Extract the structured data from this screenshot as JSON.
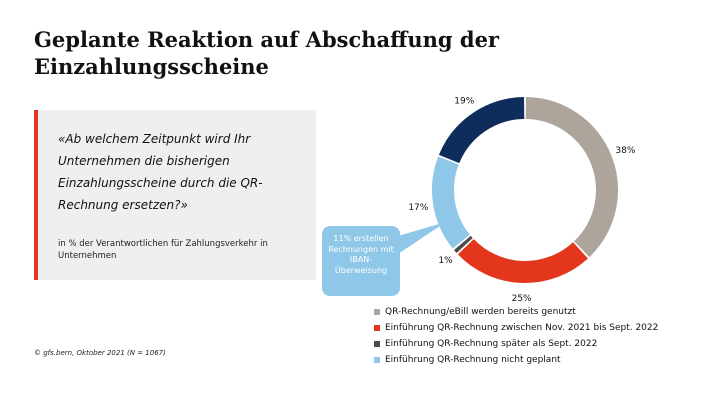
{
  "title": "Geplante Reaktion auf Abschaffung der Einzahlungsscheine",
  "question": "«Ab welchem Zeitpunkt wird Ihr Unternehmen die bisherigen Einzahlungsscheine durch die QR-Rechnung ersetzen?»",
  "subtext": "in % der Verantwortlichen für Zahlungsverkehr in Unternehmen",
  "source": "© gfs.bern, Oktober 2021 (N = 1067)",
  "callout": "11% erstellen Rechnungen mit IBAN-Überweisung",
  "colors": {
    "accent": "#e2371d",
    "panel": "#efefef"
  },
  "chart_data": {
    "type": "pie",
    "donut": true,
    "categories": [
      "QR-Rechnung/eBill werden bereits genutzt",
      "Einführung QR-Rechnung zwischen Nov. 2021 bis Sept. 2022",
      "Einführung QR-Rechnung später als Sept. 2022",
      "Einführung QR-Rechnung nicht geplant",
      ""
    ],
    "values": [
      38,
      25,
      1,
      17,
      19
    ],
    "labels": [
      "38%",
      "25%",
      "1%",
      "17%",
      "19%"
    ],
    "colors": [
      "#ada59c",
      "#e2371d",
      "#4a4a4a",
      "#8ec7e8",
      "#0f2d5c"
    ],
    "legend": [
      {
        "label": "QR-Rechnung/eBill werden bereits genutzt",
        "color": "#ada59c"
      },
      {
        "label": "Einführung QR-Rechnung zwischen Nov. 2021 bis Sept. 2022",
        "color": "#e2371d"
      },
      {
        "label": "Einführung QR-Rechnung später als Sept. 2022",
        "color": "#4a4a4a"
      },
      {
        "label": "Einführung QR-Rechnung nicht geplant",
        "color": "#8ec7e8"
      }
    ],
    "legend_position": "bottom"
  }
}
